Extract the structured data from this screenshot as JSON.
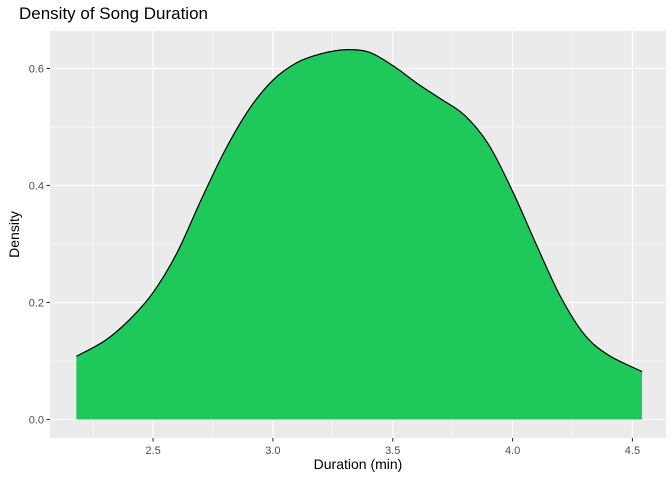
{
  "chart_data": {
    "type": "area",
    "title": "Density of Song Duration",
    "xlabel": "Duration (min)",
    "ylabel": "Density",
    "xlim": [
      2.07,
      4.64
    ],
    "ylim": [
      -0.0316,
      0.664
    ],
    "x_ticks": [
      2.5,
      3.0,
      3.5,
      4.0,
      4.5
    ],
    "x_tick_labels": [
      "2.5",
      "3.0",
      "3.5",
      "4.0",
      "4.5"
    ],
    "y_ticks": [
      0.0,
      0.2,
      0.4,
      0.6
    ],
    "y_tick_labels": [
      "0.0",
      "0.2",
      "0.4",
      "0.6"
    ],
    "grid": true,
    "legend": "none",
    "colors": {
      "fill": "#1EC85A",
      "line": "#000000",
      "panel": "#EBEBEB",
      "grid": "#FFFFFF"
    },
    "series": [
      {
        "x": [
          2.18,
          2.3,
          2.4,
          2.5,
          2.6,
          2.7,
          2.8,
          2.9,
          3.0,
          3.1,
          3.2,
          3.3,
          3.4,
          3.5,
          3.6,
          3.7,
          3.8,
          3.9,
          4.0,
          4.1,
          4.2,
          4.3,
          4.4,
          4.54
        ],
        "y": [
          0.108,
          0.135,
          0.17,
          0.217,
          0.285,
          0.375,
          0.46,
          0.53,
          0.58,
          0.61,
          0.625,
          0.632,
          0.628,
          0.605,
          0.575,
          0.548,
          0.52,
          0.47,
          0.39,
          0.298,
          0.21,
          0.145,
          0.11,
          0.082
        ]
      }
    ]
  }
}
